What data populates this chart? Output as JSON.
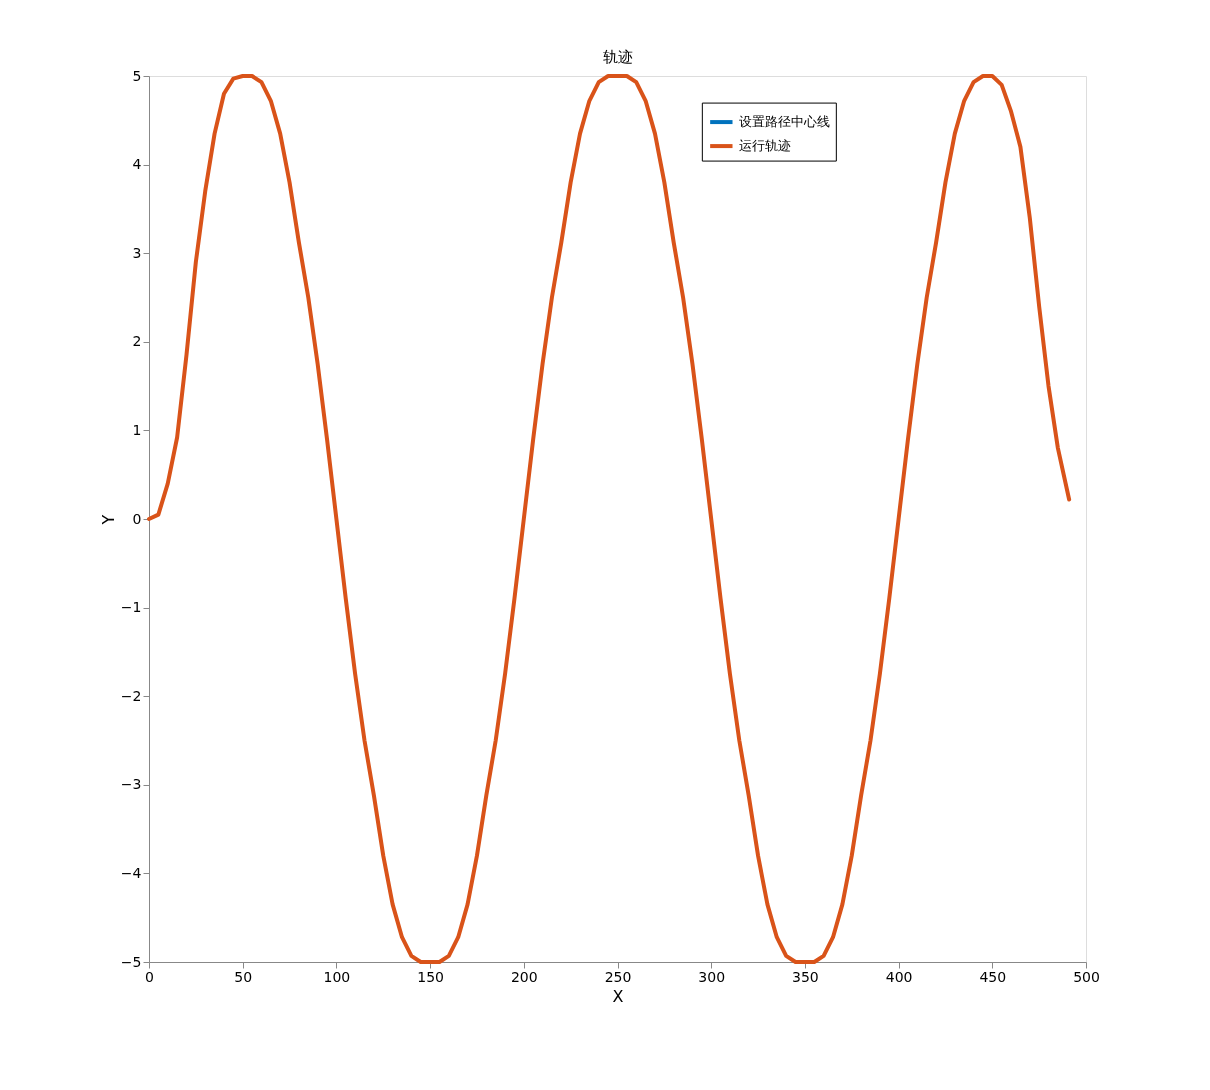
{
  "chart_data": {
    "type": "line",
    "title": "轨迹",
    "xlabel": "X",
    "ylabel": "Y",
    "x": [
      0,
      5,
      10,
      15,
      20,
      25,
      30,
      35,
      40,
      45,
      50,
      55,
      60,
      65,
      70,
      75,
      80,
      85,
      90,
      95,
      100,
      105,
      110,
      115,
      120,
      125,
      130,
      135,
      140,
      145,
      150,
      155,
      160,
      165,
      170,
      175,
      180,
      185,
      190,
      195,
      200,
      205,
      210,
      215,
      220,
      225,
      230,
      235,
      240,
      245,
      250,
      255,
      260,
      265,
      270,
      275,
      280,
      285,
      290,
      295,
      300,
      305,
      310,
      315,
      320,
      325,
      330,
      335,
      340,
      345,
      350,
      355,
      360,
      365,
      370,
      375,
      380,
      385,
      390,
      395,
      400,
      405,
      410,
      415,
      420,
      425,
      430,
      435,
      440,
      445,
      450,
      455,
      460,
      465,
      470,
      475,
      480,
      485,
      491
    ],
    "series": [
      {
        "name": "设置路径中心线",
        "color": "#0072bd",
        "values": [
          null,
          null,
          null,
          null,
          null,
          null,
          null,
          null,
          null,
          null,
          null,
          null,
          null,
          null,
          null,
          null,
          null,
          null,
          null,
          null,
          null,
          null,
          null,
          null,
          null,
          null,
          null,
          null,
          null,
          null,
          null,
          null,
          null,
          null,
          null,
          null,
          null,
          null,
          null,
          null,
          null,
          null,
          null,
          null,
          null,
          null,
          null,
          null,
          null,
          null,
          null,
          null,
          null,
          null,
          null,
          null,
          null,
          null,
          null,
          null,
          null,
          null,
          null,
          null,
          null,
          null,
          null,
          null,
          null,
          null,
          null,
          null,
          null,
          null,
          null,
          null,
          null,
          null,
          null,
          null,
          null,
          null,
          null,
          null,
          null,
          null,
          null,
          null,
          null,
          null,
          null,
          null,
          null,
          null,
          null,
          null,
          null,
          null,
          null
        ]
      },
      {
        "name": "运行轨迹",
        "color": "#d95319",
        "values": [
          0,
          0.05,
          0.4,
          0.92,
          1.85,
          2.9,
          3.7,
          4.35,
          4.8,
          4.97,
          5,
          5,
          4.93,
          4.72,
          4.35,
          3.8,
          3.12,
          2.5,
          1.75,
          0.9,
          0,
          -0.9,
          -1.75,
          -2.5,
          -3.12,
          -3.8,
          -4.35,
          -4.72,
          -4.93,
          -5,
          -5,
          -5,
          -4.93,
          -4.72,
          -4.35,
          -3.8,
          -3.12,
          -2.5,
          -1.75,
          -0.9,
          0,
          0.9,
          1.75,
          2.5,
          3.12,
          3.8,
          4.35,
          4.72,
          4.93,
          5,
          5,
          5,
          4.93,
          4.72,
          4.35,
          3.8,
          3.12,
          2.5,
          1.75,
          0.9,
          0,
          -0.9,
          -1.75,
          -2.5,
          -3.12,
          -3.8,
          -4.35,
          -4.72,
          -4.93,
          -5,
          -5,
          -5,
          -4.93,
          -4.72,
          -4.35,
          -3.8,
          -3.12,
          -2.5,
          -1.75,
          -0.9,
          0,
          0.9,
          1.75,
          2.5,
          3.12,
          3.8,
          4.35,
          4.72,
          4.93,
          5,
          5,
          4.9,
          4.6,
          4.2,
          3.4,
          2.4,
          1.5,
          0.8,
          0.22
        ]
      }
    ],
    "xlim": [
      0,
      500
    ],
    "xticks": [
      0,
      50,
      100,
      150,
      200,
      250,
      300,
      350,
      400,
      450,
      500
    ],
    "ylim": [
      -5,
      5
    ],
    "yticks": [
      -5,
      -4,
      -3,
      -2,
      -1,
      0,
      1,
      2,
      3,
      4,
      5
    ],
    "grid": false,
    "legend": "top right",
    "line_style": "solid",
    "marker": "none"
  }
}
